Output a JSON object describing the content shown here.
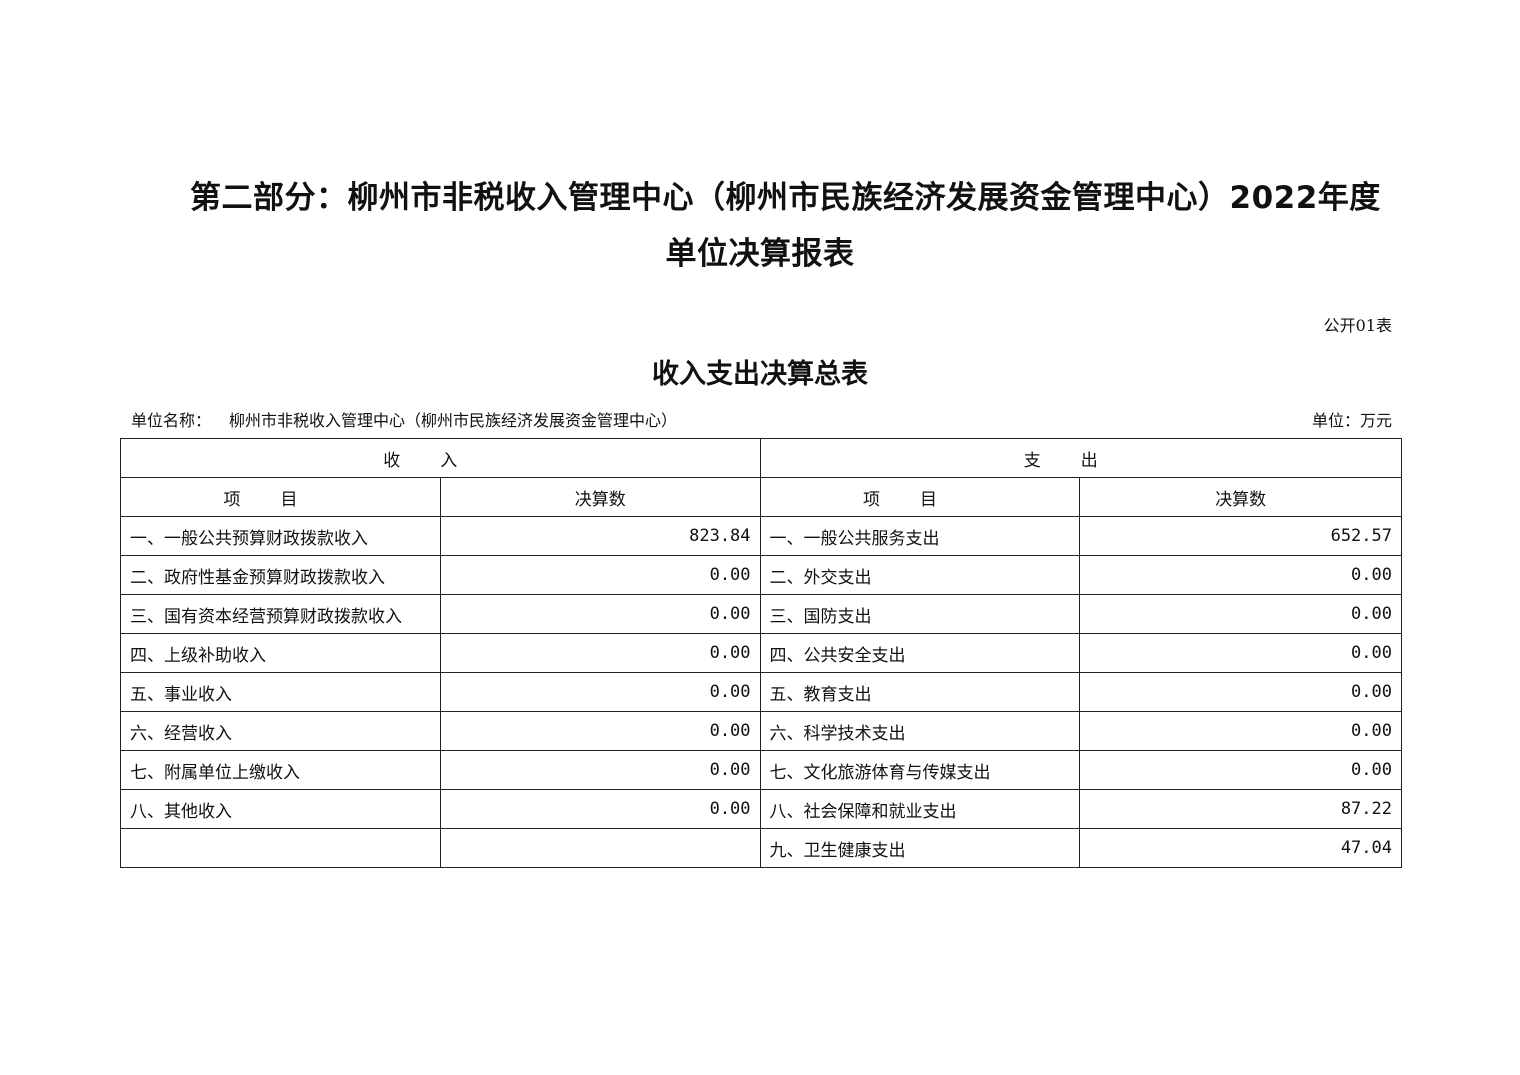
{
  "header": {
    "title_line1": "第二部分：柳州市非税收入管理中心（柳州市民族经济发展资金管理中心）2022年度",
    "title_line2": "单位决算报表",
    "table_number": "公开01表",
    "subtitle": "收入支出决算总表",
    "unit_name_label": "单位名称：",
    "unit_name": "柳州市非税收入管理中心（柳州市民族经济发展资金管理中心）",
    "unit": "单位：万元"
  },
  "table": {
    "income_header": "收入",
    "expense_header": "支出",
    "item_header": "项目",
    "amount_header": "决算数",
    "rows": [
      {
        "income_item": "一、一般公共预算财政拨款收入",
        "income_amount": "823.84",
        "expense_item": "一、一般公共服务支出",
        "expense_amount": "652.57"
      },
      {
        "income_item": "二、政府性基金预算财政拨款收入",
        "income_amount": "0.00",
        "expense_item": "二、外交支出",
        "expense_amount": "0.00"
      },
      {
        "income_item": "三、国有资本经营预算财政拨款收入",
        "income_amount": "0.00",
        "expense_item": "三、国防支出",
        "expense_amount": "0.00"
      },
      {
        "income_item": "四、上级补助收入",
        "income_amount": "0.00",
        "expense_item": "四、公共安全支出",
        "expense_amount": "0.00"
      },
      {
        "income_item": "五、事业收入",
        "income_amount": "0.00",
        "expense_item": "五、教育支出",
        "expense_amount": "0.00"
      },
      {
        "income_item": "六、经营收入",
        "income_amount": "0.00",
        "expense_item": "六、科学技术支出",
        "expense_amount": "0.00"
      },
      {
        "income_item": "七、附属单位上缴收入",
        "income_amount": "0.00",
        "expense_item": "七、文化旅游体育与传媒支出",
        "expense_amount": "0.00"
      },
      {
        "income_item": "八、其他收入",
        "income_amount": "0.00",
        "expense_item": "八、社会保障和就业支出",
        "expense_amount": "87.22"
      },
      {
        "income_item": "",
        "income_amount": "",
        "expense_item": "九、卫生健康支出",
        "expense_amount": "47.04"
      }
    ]
  }
}
